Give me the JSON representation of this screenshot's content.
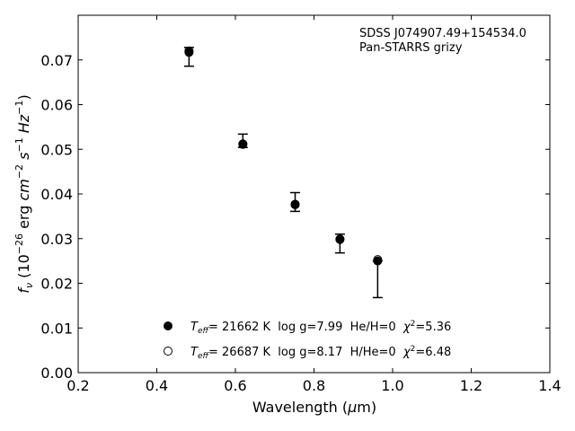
{
  "chart_data": {
    "type": "scatter",
    "annotations": [
      "SDSS J074907.49+154534.0",
      "Pan-STARRS grizy"
    ],
    "xlabel": {
      "base": "Wavelength (",
      "sym": "μ",
      "tail": "m)"
    },
    "ylabel": {
      "f": "f",
      "sub": "ν",
      "p1": " (10",
      "exp1": "−26",
      "p2": " erg ",
      "cm": "cm",
      "exp2": "−2",
      "p3": " ",
      "s": "s",
      "exp3": "−1",
      "p4": " ",
      "hz": "Hz",
      "exp4": "−1",
      "p5": ")"
    },
    "xlim": [
      0.2,
      1.4
    ],
    "ylim": [
      0.0,
      0.08
    ],
    "xticks": [
      "0.2",
      "0.4",
      "0.6",
      "0.8",
      "1.0",
      "1.2",
      "1.4"
    ],
    "yticks": [
      "0.00",
      "0.01",
      "0.02",
      "0.03",
      "0.04",
      "0.05",
      "0.06",
      "0.07"
    ],
    "grid": false,
    "legend_position": "lower-center",
    "observed": {
      "marker": "errorbar",
      "x": [
        0.482,
        0.619,
        0.752,
        0.866,
        0.962
      ],
      "y": [
        0.0707,
        0.0519,
        0.0382,
        0.0289,
        0.0209
      ],
      "yerr": [
        0.0021,
        0.0015,
        0.0021,
        0.0021,
        0.0041
      ]
    },
    "series": [
      {
        "marker": "filled-circle",
        "x": [
          0.482,
          0.619,
          0.752,
          0.866,
          0.962
        ],
        "y": [
          0.0717,
          0.0511,
          0.0376,
          0.0298,
          0.025
        ],
        "legend": {
          "t": "T",
          "eff": "eff",
          "rest": "= 21662 K  log g=7.99  He/H=0  ",
          "chi": "χ",
          "two": "2",
          "val": "=5.36"
        }
      },
      {
        "marker": "open-circle",
        "x": [
          0.482,
          0.619,
          0.752,
          0.866,
          0.962
        ],
        "y": [
          0.072,
          0.0512,
          0.0377,
          0.0299,
          0.0253
        ],
        "legend": {
          "t": "T",
          "eff": "eff",
          "rest": "= 26687 K  log g=8.17  H/He=0  ",
          "chi": "χ",
          "two": "2",
          "val": "=6.48"
        }
      }
    ]
  }
}
